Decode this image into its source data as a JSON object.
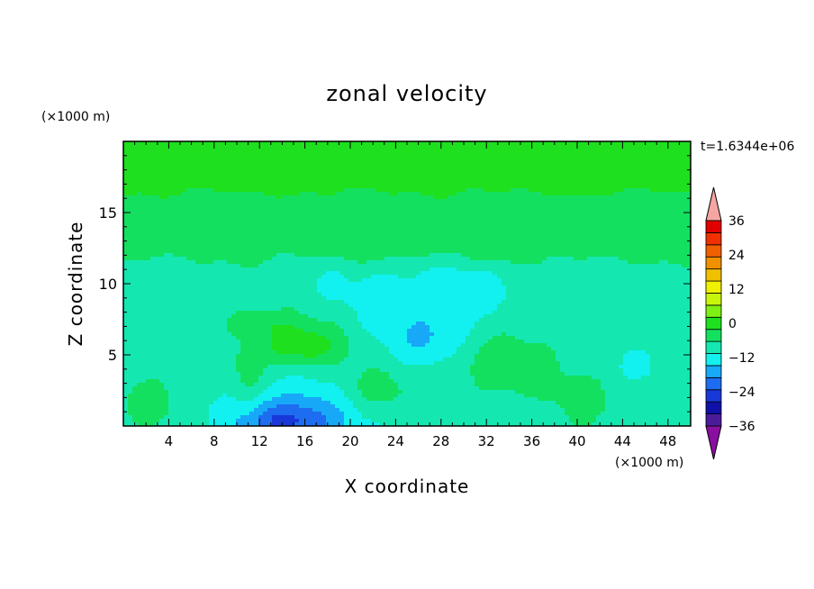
{
  "chart_data": {
    "type": "heatmap",
    "title": "zonal velocity",
    "time_label": "t=1.6344e+06",
    "xlabel": "X coordinate",
    "ylabel": "Z coordinate",
    "x_unit": "(×1000 m)",
    "y_unit": "(×1000 m)",
    "xlim": [
      0,
      50
    ],
    "ylim": [
      0,
      20
    ],
    "x_ticks": [
      4,
      8,
      12,
      16,
      20,
      24,
      28,
      32,
      36,
      40,
      44,
      48
    ],
    "y_ticks": [
      5,
      10,
      15
    ],
    "colorbar": {
      "range": [
        -42,
        42
      ],
      "step": 6,
      "tick_labels": [
        "36",
        "24",
        "12",
        "0",
        "−12",
        "−24",
        "−36"
      ],
      "tick_values": [
        36,
        24,
        12,
        0,
        -12,
        -24,
        -36
      ],
      "colors": [
        "#8a0fa0",
        "#4b1c9a",
        "#1010a8",
        "#1838d8",
        "#1e6cf0",
        "#18a8f8",
        "#12f0f0",
        "#14e8b0",
        "#14e060",
        "#1ee01e",
        "#7ef014",
        "#c8f50c",
        "#f0f000",
        "#f0c000",
        "#f09000",
        "#f06000",
        "#f03000",
        "#e00000",
        "#f6a6a2"
      ]
    }
  }
}
